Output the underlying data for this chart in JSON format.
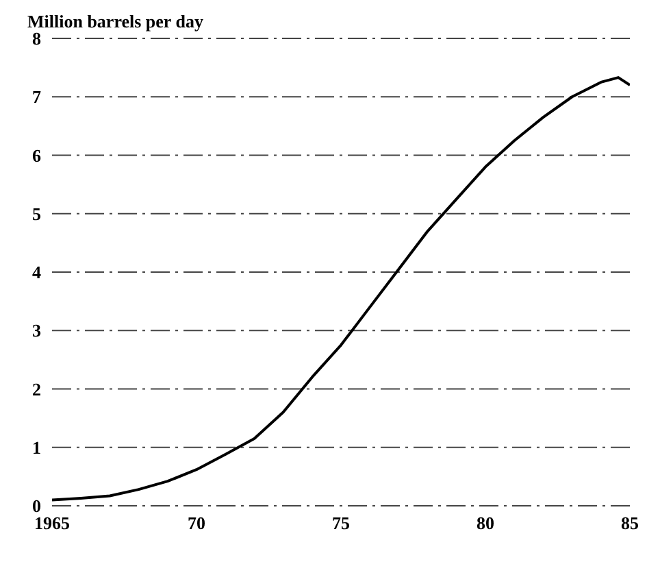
{
  "chart_data": {
    "type": "line",
    "ylabel": "Million barrels per day",
    "x": [
      1965,
      1966,
      1967,
      1968,
      1969,
      1970,
      1971,
      1972,
      1973,
      1974,
      1975,
      1976,
      1977,
      1978,
      1979,
      1980,
      1981,
      1982,
      1983,
      1984,
      1984.6,
      1985
    ],
    "series": [
      {
        "color": "#000000",
        "values": [
          0.1,
          0.13,
          0.17,
          0.28,
          0.42,
          0.62,
          0.88,
          1.15,
          1.6,
          2.2,
          2.75,
          3.4,
          4.05,
          4.7,
          5.25,
          5.8,
          6.25,
          6.65,
          7.0,
          7.25,
          7.33,
          7.2
        ]
      }
    ],
    "xlim": [
      1965,
      1985
    ],
    "xticks": [
      {
        "value": 1965,
        "label": "1965"
      },
      {
        "value": 1970,
        "label": "70"
      },
      {
        "value": 1975,
        "label": "75"
      },
      {
        "value": 1980,
        "label": "80"
      },
      {
        "value": 1985,
        "label": "85"
      }
    ],
    "ylim": [
      0,
      8
    ],
    "yticks": [
      0,
      1,
      2,
      3,
      4,
      5,
      6,
      7,
      8
    ],
    "grid": "y",
    "legend": false,
    "marker": "none",
    "line_style": "solid"
  }
}
